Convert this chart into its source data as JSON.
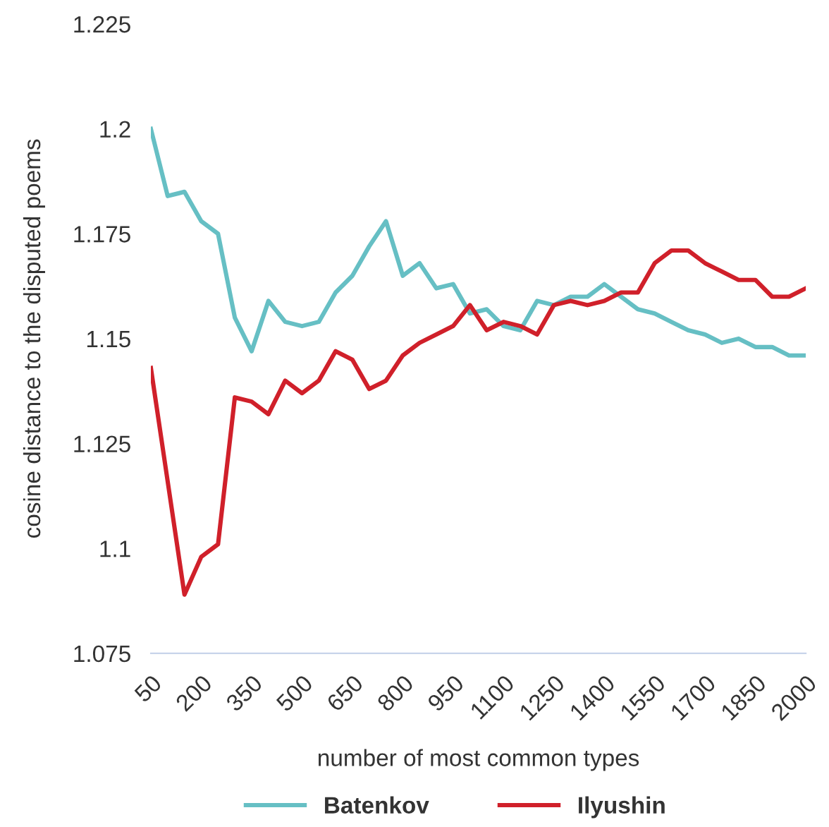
{
  "chart_data": {
    "type": "line",
    "xlabel": "number of most common types",
    "ylabel": "cosine distance to the disputed poems",
    "x": [
      50,
      100,
      150,
      200,
      250,
      300,
      350,
      400,
      450,
      500,
      550,
      600,
      650,
      700,
      750,
      800,
      850,
      900,
      950,
      1000,
      1050,
      1100,
      1150,
      1200,
      1250,
      1300,
      1350,
      1400,
      1450,
      1500,
      1550,
      1600,
      1650,
      1700,
      1750,
      1800,
      1850,
      1900,
      1950,
      2000
    ],
    "series": [
      {
        "name": "Batenkov",
        "color": "#66bfc4",
        "values": [
          1.2,
          1.184,
          1.185,
          1.178,
          1.175,
          1.155,
          1.147,
          1.159,
          1.154,
          1.153,
          1.154,
          1.161,
          1.165,
          1.172,
          1.178,
          1.165,
          1.168,
          1.162,
          1.163,
          1.156,
          1.157,
          1.153,
          1.152,
          1.159,
          1.158,
          1.16,
          1.16,
          1.163,
          1.16,
          1.157,
          1.156,
          1.154,
          1.152,
          1.151,
          1.149,
          1.15,
          1.148,
          1.148,
          1.146,
          1.146
        ]
      },
      {
        "name": "Ilyushin",
        "color": "#d0202a",
        "values": [
          1.143,
          1.116,
          1.089,
          1.098,
          1.101,
          1.136,
          1.135,
          1.132,
          1.14,
          1.137,
          1.14,
          1.147,
          1.145,
          1.138,
          1.14,
          1.146,
          1.149,
          1.151,
          1.153,
          1.158,
          1.152,
          1.154,
          1.153,
          1.151,
          1.158,
          1.159,
          1.158,
          1.159,
          1.161,
          1.161,
          1.168,
          1.171,
          1.171,
          1.168,
          1.166,
          1.164,
          1.164,
          1.16,
          1.16,
          1.162
        ]
      }
    ],
    "xlim": [
      50,
      2000
    ],
    "xticks": [
      50,
      200,
      350,
      500,
      650,
      800,
      950,
      1100,
      1250,
      1400,
      1550,
      1700,
      1850,
      2000
    ],
    "ylim": [
      1.075,
      1.225
    ],
    "yticks": [
      1.075,
      1.1,
      1.125,
      1.15,
      1.175,
      1.2,
      1.225
    ],
    "grid": false,
    "legend": "bottom",
    "marker": "none",
    "line_style": "solid"
  }
}
